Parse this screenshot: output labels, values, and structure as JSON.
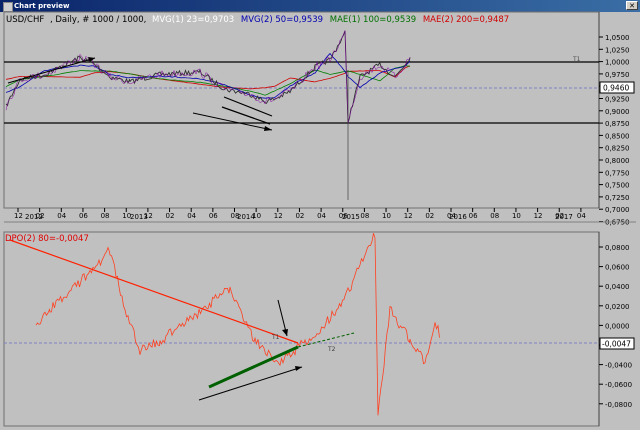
{
  "window": {
    "title": "Chart preview",
    "close_glyph": "✕"
  },
  "top_chart": {
    "symbol": "USD/CHF",
    "period": ", Daily, # 1000 / 1000,",
    "indicators": [
      {
        "text": "MVG(1) 23=0,9703",
        "color": "#ffffff"
      },
      {
        "text": "MVG(2) 50=0,9539",
        "color": "#0000b0"
      },
      {
        "text": "MAE(1) 100=0,9539",
        "color": "#007000"
      },
      {
        "text": "MAE(2) 200=0,9487",
        "color": "#d00000"
      }
    ],
    "price_label": "0,9460",
    "t1_label": "T1",
    "yticks": [
      "1,0500",
      "1,0250",
      "1,0000",
      "0,9750",
      "0,9500",
      "0,9250",
      "0,9000",
      "0,8750",
      "0,8500",
      "0,8250",
      "0,8000",
      "0,7750",
      "0,7500",
      "0,7250",
      "0,7000",
      "0,6750"
    ],
    "month_ticks": [
      "12",
      "02",
      "04",
      "06",
      "08",
      "10",
      "12",
      "02",
      "04",
      "06",
      "08",
      "10",
      "12",
      "02",
      "04",
      "06",
      "08",
      "10",
      "12",
      "02",
      "04",
      "06",
      "08",
      "10",
      "12",
      "02",
      "04"
    ],
    "year_ticks": [
      "2012",
      "2013",
      "2014",
      "2015",
      "2016",
      "2017"
    ]
  },
  "bottom_chart": {
    "title": "DPO(2) 80=-0,0047",
    "value_label": "-0,0047",
    "t1_label": "T1",
    "t2_label": "T2",
    "yticks": [
      "0,0800",
      "0,0600",
      "0,0400",
      "0,0200",
      "0,0000",
      "-0,0200",
      "-0,0400",
      "-0,0600",
      "-0,0800"
    ]
  },
  "chart_data": [
    {
      "type": "line",
      "title": "USD/CHF , Daily",
      "ylim": [
        0.6625,
        1.0625
      ],
      "xlabel": "",
      "ylabel": "",
      "x": [
        "2011-11",
        "2012-01",
        "2012-04",
        "2012-07",
        "2012-09",
        "2012-11",
        "2013-01",
        "2013-04",
        "2013-07",
        "2013-10",
        "2014-01",
        "2014-03",
        "2014-05",
        "2014-07",
        "2014-09",
        "2014-11",
        "2015-01",
        "2015-01b",
        "2015-02",
        "2015-04",
        "2015-06",
        "2015-08",
        "2015-09"
      ],
      "series": [
        {
          "name": "USD/CHF",
          "values": [
            0.87,
            0.925,
            0.935,
            0.97,
            0.955,
            0.93,
            0.92,
            0.935,
            0.94,
            0.905,
            0.895,
            0.88,
            0.885,
            0.9,
            0.95,
            0.965,
            1.02,
            0.84,
            0.93,
            0.955,
            0.93,
            0.955,
            0.97
          ]
        }
      ],
      "levels": [
        1.0,
        0.875
      ]
    },
    {
      "type": "line",
      "title": "DPO(2) 80=-0,0047",
      "ylim": [
        -0.09,
        0.092
      ],
      "x": [
        "2011-11",
        "2012-01",
        "2012-04",
        "2012-07",
        "2012-09",
        "2012-11",
        "2013-01",
        "2013-04",
        "2013-07",
        "2013-10",
        "2014-01",
        "2014-03",
        "2014-05",
        "2014-07",
        "2014-09",
        "2014-11",
        "2015-01",
        "2015-01b",
        "2015-02",
        "2015-04",
        "2015-06",
        "2015-08",
        "2015-09"
      ],
      "series": [
        {
          "name": "DPO(2) 80",
          "values": [
            0.0,
            0.02,
            0.04,
            0.075,
            0.02,
            -0.02,
            -0.01,
            0.01,
            0.04,
            -0.01,
            -0.03,
            -0.02,
            -0.01,
            0.0,
            0.03,
            0.06,
            0.09,
            -0.08,
            0.02,
            -0.01,
            -0.03,
            0.01,
            -0.0047
          ]
        }
      ]
    }
  ]
}
